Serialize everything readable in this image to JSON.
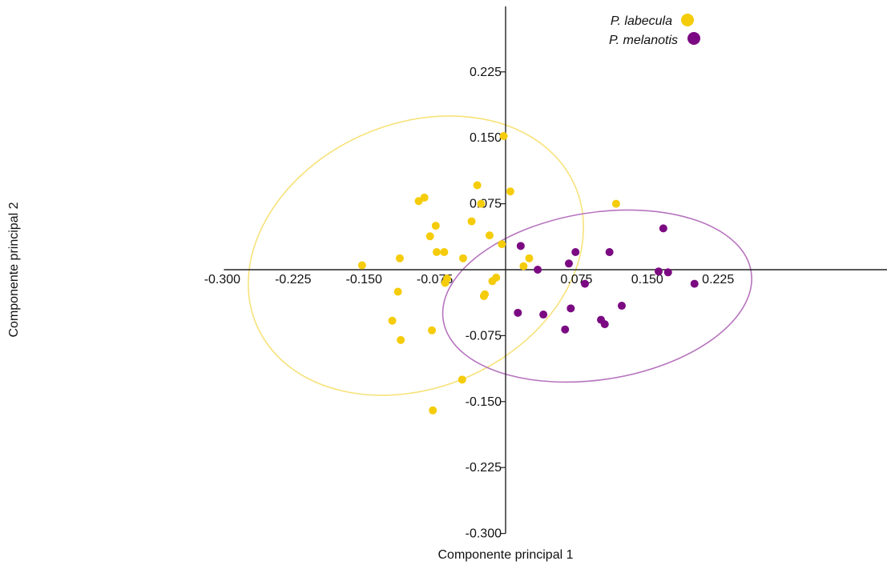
{
  "chart_data": {
    "type": "scatter",
    "xlabel": "Componente principal 1",
    "ylabel": "Componente principal 2",
    "xlim": [
      -0.3,
      0.25
    ],
    "ylim": [
      -0.3,
      0.3
    ],
    "x_ticks": [
      -0.3,
      -0.225,
      -0.15,
      -0.075,
      0.075,
      0.15,
      0.225
    ],
    "x_tick_labels": [
      "-0.300",
      "-0.225",
      "-0.150",
      "-0.075",
      "0.075",
      "0.150",
      "0.225"
    ],
    "y_ticks": [
      0.225,
      0.15,
      0.075,
      -0.075,
      -0.15,
      -0.225,
      -0.3
    ],
    "y_tick_labels": [
      "0.225",
      "0.150",
      "0.075",
      "-0.075",
      "-0.150",
      "-0.225",
      "-0.300"
    ],
    "grid": false,
    "legend_position": "top-right",
    "series": [
      {
        "name": "P. labecula",
        "color": "#F5CC0A",
        "ellipse_color": "#F7E27A",
        "ellipse": {
          "cx": -0.095,
          "cy": 0.016,
          "rx": 0.184,
          "ry": 0.15,
          "angle_deg": -24
        },
        "points": [
          [
            -0.152,
            0.005
          ],
          [
            -0.112,
            0.013
          ],
          [
            -0.092,
            0.078
          ],
          [
            -0.086,
            0.082
          ],
          [
            -0.08,
            0.038
          ],
          [
            -0.074,
            0.05
          ],
          [
            -0.073,
            0.02
          ],
          [
            -0.065,
            0.02
          ],
          [
            -0.062,
            -0.01
          ],
          [
            -0.064,
            -0.015
          ],
          [
            -0.045,
            0.013
          ],
          [
            -0.036,
            0.055
          ],
          [
            -0.03,
            0.096
          ],
          [
            -0.026,
            0.075
          ],
          [
            -0.022,
            -0.028
          ],
          [
            -0.023,
            -0.03
          ],
          [
            -0.014,
            -0.013
          ],
          [
            -0.01,
            -0.009
          ],
          [
            -0.002,
            0.152
          ],
          [
            -0.017,
            0.039
          ],
          [
            -0.004,
            0.029
          ],
          [
            0.005,
            0.089
          ],
          [
            0.019,
            0.004
          ],
          [
            0.025,
            0.013
          ],
          [
            -0.114,
            -0.025
          ],
          [
            -0.12,
            -0.058
          ],
          [
            -0.111,
            -0.08
          ],
          [
            -0.078,
            -0.069
          ],
          [
            -0.046,
            -0.125
          ],
          [
            -0.077,
            -0.16
          ],
          [
            0.117,
            0.075
          ]
        ]
      },
      {
        "name": "P. melanotis",
        "color": "#7B0A82",
        "ellipse_color": "#B774BE",
        "ellipse": {
          "cx": 0.097,
          "cy": -0.03,
          "rx": 0.165,
          "ry": 0.095,
          "angle_deg": -9
        },
        "points": [
          [
            0.013,
            -0.049
          ],
          [
            0.016,
            0.027
          ],
          [
            0.034,
            0.0
          ],
          [
            0.04,
            -0.051
          ],
          [
            0.067,
            0.007
          ],
          [
            0.069,
            -0.044
          ],
          [
            0.063,
            -0.068
          ],
          [
            0.074,
            0.02
          ],
          [
            0.084,
            -0.016
          ],
          [
            0.101,
            -0.057
          ],
          [
            0.105,
            -0.062
          ],
          [
            0.11,
            0.02
          ],
          [
            0.123,
            -0.041
          ],
          [
            0.167,
            0.047
          ],
          [
            0.162,
            -0.002
          ],
          [
            0.172,
            -0.003
          ],
          [
            0.2,
            -0.016
          ]
        ]
      }
    ]
  }
}
